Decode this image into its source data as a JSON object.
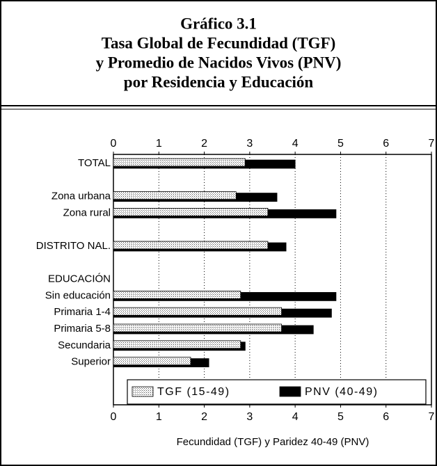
{
  "chart_data": {
    "type": "bar",
    "title": [
      "Gráfico 3.1",
      "Tasa Global de Fecundidad (TGF)",
      "y Promedio de Nacidos Vivos (PNV)",
      "por Residencia y Educación"
    ],
    "x_label": "Fecundidad (TGF) y Paridez 40-49 (PNV)",
    "categories": [
      "TOTAL",
      null,
      "Zona urbana",
      "Zona rural",
      null,
      "DISTRITO NAL.",
      null,
      "EDUCACIÓN",
      "Sin educación",
      "Primaria 1-4",
      "Primaria 5-8",
      "Secundaria",
      "Superior"
    ],
    "series": [
      {
        "name": "PNV (40-49)",
        "color": "#000000",
        "values": [
          4.0,
          null,
          3.6,
          4.9,
          null,
          3.8,
          null,
          null,
          4.9,
          4.8,
          4.4,
          2.9,
          2.1
        ]
      },
      {
        "name": "TGF (15-49)",
        "color": "#c8c8c8",
        "values": [
          2.9,
          null,
          2.7,
          3.4,
          null,
          3.4,
          null,
          null,
          2.8,
          3.7,
          3.7,
          2.8,
          1.7
        ]
      }
    ],
    "xlim": [
      0,
      7
    ],
    "xticks": [
      0,
      1,
      2,
      3,
      4,
      5,
      6,
      7
    ],
    "grid": true,
    "legend": "bottom"
  }
}
